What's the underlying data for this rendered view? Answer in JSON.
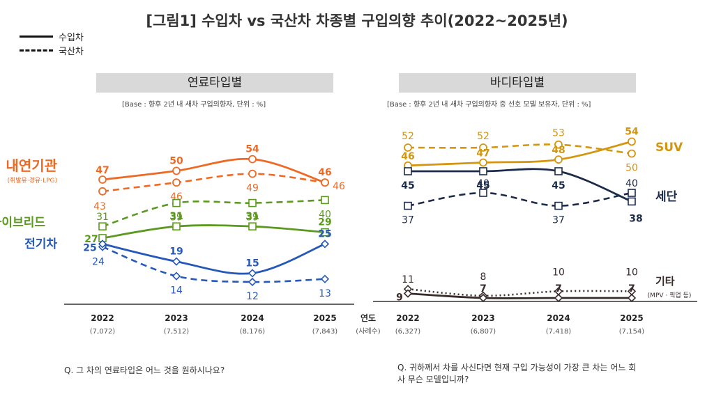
{
  "title": "[그림1] 수입차 vs 국산차 차종별 구입의향 추이(2022~2025년)",
  "legend": {
    "imported": "수입차",
    "domestic": "국산차"
  },
  "left_panel": {
    "header": "연료타입별",
    "base": "[Base : 향후 2년 내 새차 구입의향자, 단위 : %]",
    "question": "Q. 그 차의 연료타입은 어느 것을 원하시나요?"
  },
  "right_panel": {
    "header": "바디타입별",
    "base": "[Base : 향후 2년 내 새차 구입의향자 중 선호 모델 보유자, 단위 : %]",
    "question_line1": "Q. 귀하께서 차를 사신다면 현재 구입 가능성이 가장 큰 차는 어느 회",
    "question_line2": "사 무슨 모델입니까?"
  },
  "axis_unit": {
    "label": "연도",
    "sub": "(사례수)"
  },
  "colors": {
    "orange": "#ee6a24",
    "green": "#5b9a1e",
    "blue": "#2558b8",
    "gold": "#d4950f",
    "navy": "#1c2b4a",
    "dark": "#3a2b2b"
  },
  "chart_data": [
    {
      "type": "line",
      "title": "연료타입별",
      "categories": [
        "2022",
        "2023",
        "2024",
        "2025"
      ],
      "category_sub": [
        "(7,072)",
        "(7,512)",
        "(8,176)",
        "(7,843)"
      ],
      "series": [
        {
          "name": "내연기관",
          "sub": "(휘발유·경유·LPG)",
          "imported": [
            47,
            50,
            54,
            46
          ],
          "domestic": [
            43,
            46,
            49,
            46
          ],
          "color": "#ee6a24",
          "marker": "circle"
        },
        {
          "name": "하이브리드",
          "imported": [
            27,
            31,
            31,
            29
          ],
          "domestic": [
            31,
            39,
            39,
            40
          ],
          "color": "#5b9a1e",
          "marker": "square"
        },
        {
          "name": "전기차",
          "imported": [
            25,
            19,
            15,
            25
          ],
          "domestic": [
            24,
            14,
            12,
            13
          ],
          "color": "#2558b8",
          "marker": "diamond"
        }
      ]
    },
    {
      "type": "line",
      "title": "바디타입별",
      "categories": [
        "2022",
        "2023",
        "2024",
        "2025"
      ],
      "category_sub": [
        "(6,327)",
        "(6,807)",
        "(7,418)",
        "(7,154)"
      ],
      "series": [
        {
          "name": "SUV",
          "imported": [
            46,
            47,
            48,
            54
          ],
          "domestic": [
            52,
            52,
            53,
            50
          ],
          "color": "#d4950f",
          "marker": "circle"
        },
        {
          "name": "세단",
          "imported": [
            45,
            45,
            45,
            38
          ],
          "domestic": [
            37,
            40,
            37,
            40
          ],
          "color": "#1c2b4a",
          "marker": "square"
        },
        {
          "name": "기타",
          "sub": "(MPV · 픽업 등)",
          "imported": [
            9,
            7,
            7,
            7
          ],
          "domestic": [
            11,
            8,
            10,
            10
          ],
          "color": "#3a2b2b",
          "marker": "diamond"
        }
      ]
    }
  ]
}
